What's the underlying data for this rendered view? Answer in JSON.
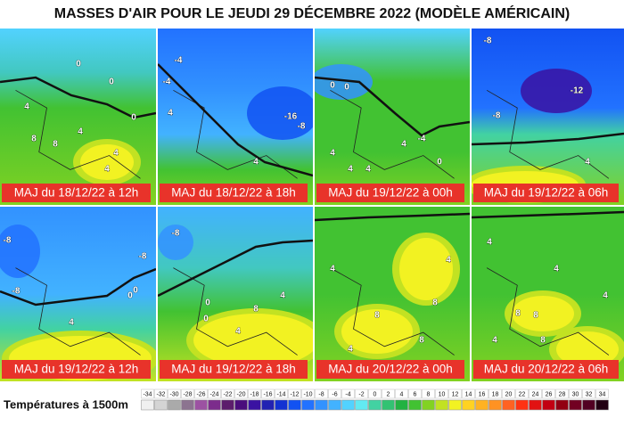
{
  "title": "MASSES D'AIR POUR LE JEUDI 29 DÉCEMBRE 2022 (MODÈLE AMÉRICAIN)",
  "panels": [
    {
      "label": "MAJ du 18/12/22 à 12h",
      "contours": [
        "0",
        "0",
        "0",
        "4",
        "4",
        "4",
        "8",
        "8",
        "4"
      ]
    },
    {
      "label": "MAJ du 18/12/22 à 18h",
      "contours": [
        "-4",
        "-4",
        "4",
        "-16",
        "-8",
        "4"
      ]
    },
    {
      "label": "MAJ du 19/12/22 à 00h",
      "contours": [
        "0",
        "0",
        "-4",
        "4",
        "4",
        "4",
        "0",
        "4"
      ]
    },
    {
      "label": "MAJ du 19/12/22 à 06h",
      "contours": [
        "-8",
        "-12",
        "-8",
        "4"
      ]
    },
    {
      "label": "MAJ du 19/12/22 à 12h",
      "contours": [
        "-8",
        "-8",
        "0",
        "0",
        "4",
        "-8"
      ]
    },
    {
      "label": "MAJ du 19/12/22 à 18h",
      "contours": [
        "-8",
        "0",
        "0",
        "4",
        "8",
        "4"
      ]
    },
    {
      "label": "MAJ du 20/12/22 à 00h",
      "contours": [
        "4",
        "4",
        "8",
        "8",
        "4",
        "8"
      ]
    },
    {
      "label": "MAJ du 20/12/22 à 06h",
      "contours": [
        "4",
        "4",
        "8",
        "8",
        "4",
        "8",
        "4"
      ]
    }
  ],
  "legend": {
    "title": "Températures à 1500m",
    "ticks": [
      -34,
      -32,
      -30,
      -28,
      -26,
      -24,
      -22,
      -20,
      -18,
      -16,
      -14,
      -12,
      -10,
      -8,
      -6,
      -4,
      -2,
      0,
      2,
      4,
      6,
      8,
      10,
      12,
      14,
      16,
      18,
      20,
      22,
      24,
      26,
      28,
      30,
      32,
      34
    ],
    "colors": [
      "#f0f0f0",
      "#d4d4d4",
      "#aaaaaa",
      "#8c7490",
      "#9c52a2",
      "#7c2c8c",
      "#5c1c6c",
      "#4a0c7c",
      "#3a12a2",
      "#2222b2",
      "#1232d2",
      "#1252f2",
      "#2272ff",
      "#3292ff",
      "#42b2ff",
      "#52d2ff",
      "#62eaf2",
      "#42d2a2",
      "#32c272",
      "#22b242",
      "#42c232",
      "#82d222",
      "#c2e222",
      "#f2f222",
      "#ffd222",
      "#ffb222",
      "#ff9222",
      "#ff6222",
      "#ff3212",
      "#e21212",
      "#c20012",
      "#920012",
      "#720022",
      "#520022",
      "#220012"
    ]
  }
}
